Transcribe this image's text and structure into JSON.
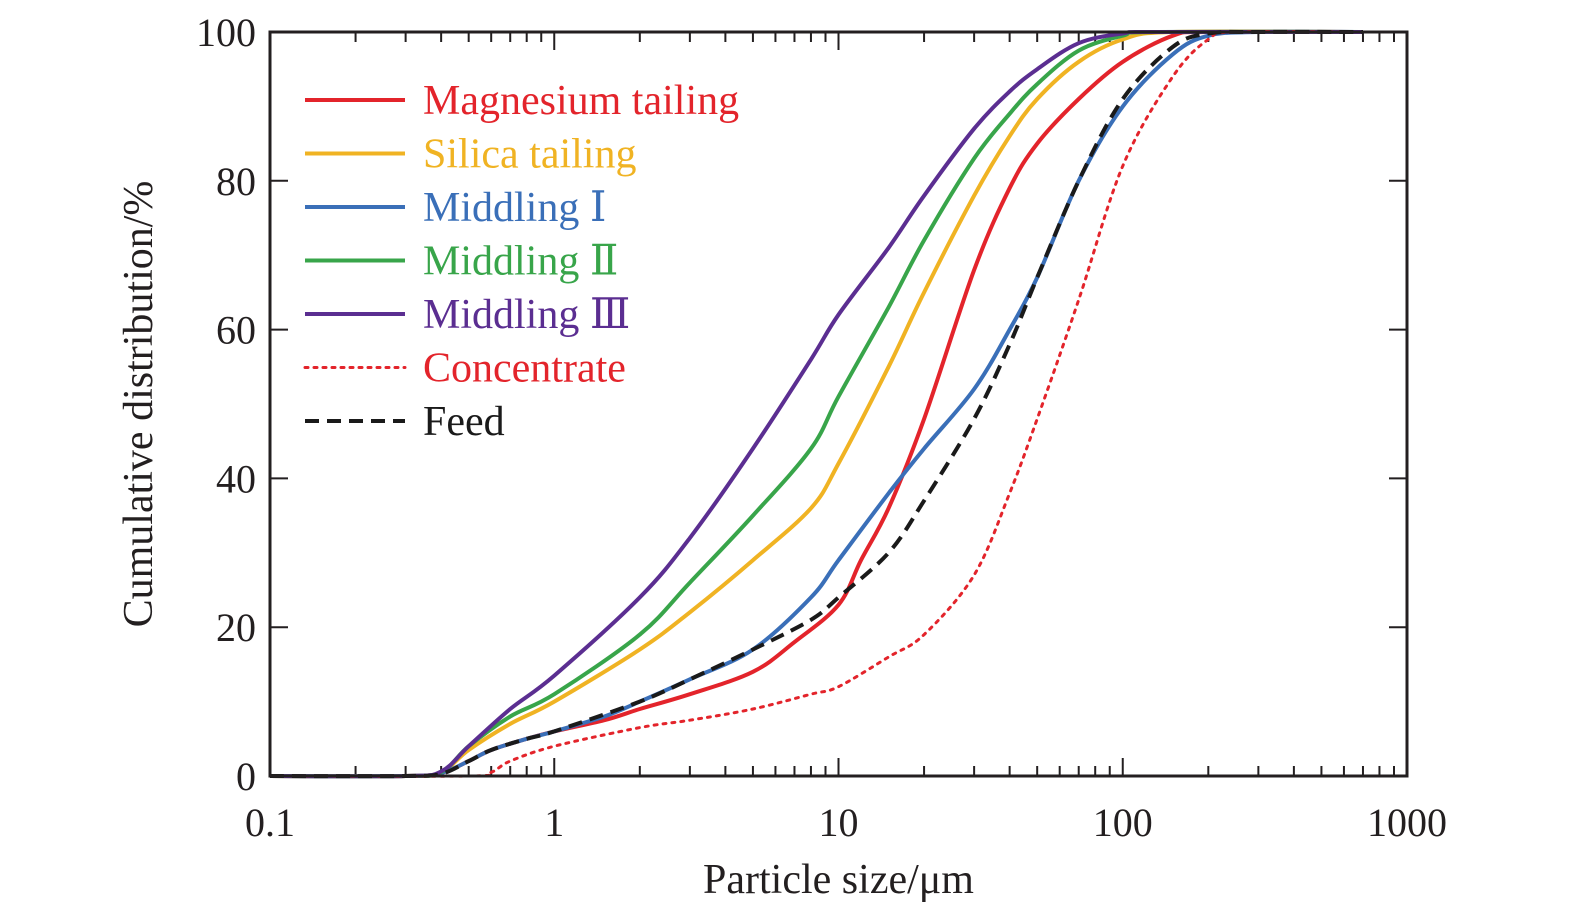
{
  "chart_data": {
    "type": "line",
    "title": "",
    "xlabel": "Particle size/μm",
    "ylabel": "Cumulative distribution/%",
    "x_scale": "log",
    "xlim": [
      0.1,
      1000
    ],
    "ylim": [
      0,
      100
    ],
    "x_ticks": [
      0.1,
      1,
      10,
      100,
      1000
    ],
    "x_tick_labels": [
      "0.1",
      "1",
      "10",
      "100",
      "1000"
    ],
    "y_ticks": [
      0,
      20,
      40,
      60,
      80,
      100
    ],
    "y_tick_labels": [
      "0",
      "20",
      "40",
      "60",
      "80",
      "100"
    ],
    "grid": false,
    "legend_position": "top-left",
    "series": [
      {
        "name": "Magnesium tailing",
        "color": "#e3242b",
        "dash": "solid",
        "points": [
          [
            0.1,
            0
          ],
          [
            0.3,
            0
          ],
          [
            0.4,
            0.4
          ],
          [
            0.5,
            2
          ],
          [
            0.6,
            3.5
          ],
          [
            0.8,
            5
          ],
          [
            1,
            6
          ],
          [
            1.5,
            7.5
          ],
          [
            2,
            9
          ],
          [
            3,
            11
          ],
          [
            5,
            14
          ],
          [
            7,
            18
          ],
          [
            10,
            23
          ],
          [
            12,
            29
          ],
          [
            15,
            36
          ],
          [
            20,
            48
          ],
          [
            30,
            68
          ],
          [
            40,
            79
          ],
          [
            50,
            85
          ],
          [
            70,
            91
          ],
          [
            100,
            96
          ],
          [
            150,
            99.5
          ],
          [
            200,
            100
          ],
          [
            700,
            100
          ]
        ]
      },
      {
        "name": "Silica tailing",
        "color": "#f0b323",
        "dash": "solid",
        "points": [
          [
            0.1,
            0
          ],
          [
            0.3,
            0
          ],
          [
            0.4,
            0.5
          ],
          [
            0.5,
            3.5
          ],
          [
            0.7,
            7
          ],
          [
            1,
            10
          ],
          [
            2,
            17
          ],
          [
            3,
            22
          ],
          [
            5,
            29
          ],
          [
            8,
            36
          ],
          [
            10,
            42
          ],
          [
            15,
            55
          ],
          [
            20,
            65
          ],
          [
            30,
            78
          ],
          [
            40,
            86
          ],
          [
            50,
            91
          ],
          [
            70,
            96
          ],
          [
            100,
            99
          ],
          [
            150,
            100
          ],
          [
            700,
            100
          ]
        ]
      },
      {
        "name": "Middling Ⅰ",
        "color": "#3a6fb8",
        "dash": "solid",
        "points": [
          [
            0.1,
            0
          ],
          [
            0.3,
            0
          ],
          [
            0.4,
            0.4
          ],
          [
            0.5,
            2
          ],
          [
            0.6,
            3.5
          ],
          [
            0.8,
            5
          ],
          [
            1,
            6
          ],
          [
            1.5,
            8
          ],
          [
            2,
            10
          ],
          [
            3,
            13
          ],
          [
            5,
            17
          ],
          [
            8,
            24
          ],
          [
            10,
            29
          ],
          [
            15,
            38
          ],
          [
            20,
            44
          ],
          [
            30,
            52
          ],
          [
            40,
            60
          ],
          [
            50,
            67
          ],
          [
            70,
            80
          ],
          [
            100,
            90
          ],
          [
            150,
            97
          ],
          [
            200,
            99.5
          ],
          [
            300,
            100
          ],
          [
            700,
            100
          ]
        ]
      },
      {
        "name": "Middling Ⅱ",
        "color": "#38a54a",
        "dash": "solid",
        "points": [
          [
            0.1,
            0
          ],
          [
            0.3,
            0
          ],
          [
            0.4,
            0.5
          ],
          [
            0.5,
            4
          ],
          [
            0.7,
            8
          ],
          [
            1,
            11
          ],
          [
            2,
            19
          ],
          [
            3,
            26
          ],
          [
            5,
            35
          ],
          [
            8,
            44
          ],
          [
            10,
            51
          ],
          [
            15,
            63
          ],
          [
            20,
            72
          ],
          [
            30,
            83
          ],
          [
            40,
            89
          ],
          [
            50,
            93
          ],
          [
            70,
            97.5
          ],
          [
            100,
            99.5
          ],
          [
            130,
            100
          ],
          [
            700,
            100
          ]
        ]
      },
      {
        "name": "Middling Ⅲ",
        "color": "#5b2e91",
        "dash": "solid",
        "points": [
          [
            0.1,
            0
          ],
          [
            0.3,
            0
          ],
          [
            0.4,
            0.6
          ],
          [
            0.5,
            4
          ],
          [
            0.7,
            9
          ],
          [
            1,
            13.5
          ],
          [
            2,
            24
          ],
          [
            3,
            32
          ],
          [
            5,
            44
          ],
          [
            8,
            56
          ],
          [
            10,
            62
          ],
          [
            15,
            71
          ],
          [
            20,
            78
          ],
          [
            30,
            87
          ],
          [
            40,
            92
          ],
          [
            50,
            95
          ],
          [
            70,
            98.5
          ],
          [
            100,
            99.8
          ],
          [
            130,
            100
          ],
          [
            700,
            100
          ]
        ]
      },
      {
        "name": "Concentrate",
        "color": "#e3242b",
        "dash": "dotted",
        "points": [
          [
            0.1,
            0
          ],
          [
            0.5,
            0
          ],
          [
            0.6,
            0.5
          ],
          [
            0.7,
            2
          ],
          [
            1,
            4
          ],
          [
            2,
            6.5
          ],
          [
            3,
            7.5
          ],
          [
            5,
            9
          ],
          [
            8,
            11
          ],
          [
            10,
            12
          ],
          [
            15,
            16
          ],
          [
            20,
            19
          ],
          [
            30,
            27
          ],
          [
            40,
            38
          ],
          [
            50,
            48
          ],
          [
            70,
            64
          ],
          [
            100,
            82
          ],
          [
            150,
            94
          ],
          [
            200,
            99
          ],
          [
            250,
            100
          ],
          [
            700,
            100
          ]
        ]
      },
      {
        "name": "Feed",
        "color": "#1a1a1a",
        "dash": "dashed",
        "points": [
          [
            0.1,
            0
          ],
          [
            0.3,
            0
          ],
          [
            0.4,
            0.3
          ],
          [
            0.5,
            2
          ],
          [
            0.6,
            3.5
          ],
          [
            0.8,
            5
          ],
          [
            1,
            6
          ],
          [
            2,
            10
          ],
          [
            3,
            13
          ],
          [
            5,
            17
          ],
          [
            8,
            21
          ],
          [
            10,
            24
          ],
          [
            15,
            30
          ],
          [
            20,
            37
          ],
          [
            30,
            48
          ],
          [
            40,
            58
          ],
          [
            50,
            67
          ],
          [
            70,
            80
          ],
          [
            100,
            91
          ],
          [
            150,
            98
          ],
          [
            200,
            99.8
          ],
          [
            300,
            100
          ],
          [
            700,
            100
          ]
        ]
      }
    ]
  }
}
